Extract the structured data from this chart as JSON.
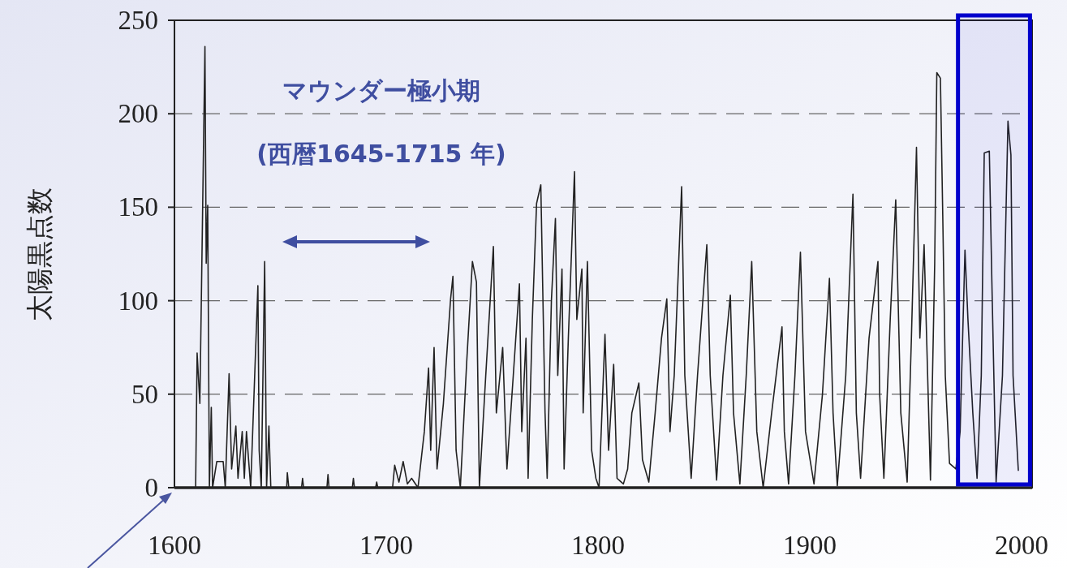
{
  "chart_data": {
    "type": "line",
    "ylabel": "太陽黒点数",
    "annotations": [
      "マウンダー極小期",
      "(西暦1645-1715 年)"
    ],
    "xlim": [
      1600,
      2005
    ],
    "xticks": [
      1600,
      1700,
      1800,
      1900,
      2000
    ],
    "ylim": [
      0,
      250
    ],
    "yticks": [
      0,
      50,
      100,
      150,
      200,
      250
    ],
    "grid": "y",
    "bands": [
      {
        "axis": "x",
        "from": 1970,
        "to": 2004,
        "color": "#0000cc"
      }
    ],
    "series": [
      {
        "color": "#222222",
        "x": [
          1610,
          1610.7,
          1612,
          1614.4,
          1615,
          1615.7,
          1616.5,
          1617.4,
          1618,
          1620,
          1623,
          1624,
          1625.8,
          1627,
          1629,
          1630,
          1632,
          1633,
          1634,
          1636,
          1639.4,
          1640,
          1641,
          1642.6,
          1643.5,
          1644.6,
          1645.5,
          1653,
          1653.3,
          1654,
          1660,
          1660.5,
          1661,
          1672,
          1672.5,
          1673,
          1684,
          1684.5,
          1685,
          1695,
          1695.5,
          1696,
          1703,
          1704,
          1706,
          1708,
          1710,
          1712,
          1715,
          1718,
          1720,
          1721,
          1722.6,
          1724,
          1727,
          1730.4,
          1731.5,
          1733,
          1735,
          1738,
          1740.7,
          1742.6,
          1744,
          1747,
          1750.6,
          1752,
          1755,
          1757,
          1760,
          1762.9,
          1764,
          1766,
          1767,
          1769,
          1771,
          1773,
          1775,
          1776,
          1778,
          1779.9,
          1781,
          1783,
          1784,
          1786,
          1788.9,
          1790,
          1792.4,
          1793,
          1795,
          1797,
          1799,
          1800.5,
          1803.3,
          1805,
          1807.4,
          1809,
          1812,
          1814,
          1816,
          1819.3,
          1821,
          1824,
          1827,
          1830,
          1832.5,
          1834,
          1836,
          1839.5,
          1841,
          1844,
          1847,
          1851.4,
          1853,
          1856,
          1859,
          1862.5,
          1864,
          1867,
          1870,
          1872.6,
          1875,
          1878,
          1882,
          1886.9,
          1888,
          1890,
          1893,
          1895.6,
          1898,
          1902,
          1906,
          1909.3,
          1911,
          1913,
          1917,
          1920.4,
          1922,
          1924,
          1928,
          1932.2,
          1933,
          1935,
          1938,
          1940.6,
          1943,
          1946,
          1948,
          1950.4,
          1952,
          1954,
          1957,
          1959,
          1960,
          1961.7,
          1962.8,
          1964,
          1966,
          1969,
          1971,
          1973.3,
          1974.7,
          1977,
          1979,
          1981,
          1982.4,
          1984.8,
          1986,
          1988,
          1991,
          1993.6,
          1995,
          1996,
          1998.5
        ],
        "values": [
          0,
          72,
          45,
          236,
          120,
          151,
          0,
          43,
          0,
          14,
          14,
          0,
          61,
          10,
          33,
          5,
          30,
          5,
          30,
          0,
          108,
          20,
          0,
          121,
          0,
          33,
          0,
          0,
          8,
          0,
          0,
          5,
          0,
          0,
          7,
          0,
          0,
          5,
          0,
          0,
          3,
          0,
          0,
          12,
          3,
          14,
          2,
          5,
          0,
          30,
          64,
          20,
          75,
          10,
          45,
          101,
          113,
          20,
          0,
          67,
          121,
          110,
          0,
          60,
          129,
          40,
          75,
          10,
          60,
          109,
          30,
          80,
          5,
          90,
          152,
          162,
          40,
          5,
          100,
          144,
          60,
          117,
          10,
          80,
          169,
          90,
          117,
          40,
          121,
          20,
          5,
          0,
          82,
          20,
          66,
          5,
          2,
          10,
          40,
          56,
          15,
          3,
          40,
          80,
          101,
          30,
          60,
          161,
          60,
          5,
          60,
          130,
          60,
          4,
          60,
          103,
          40,
          2,
          60,
          121,
          30,
          0,
          40,
          86,
          30,
          2,
          60,
          126,
          30,
          2,
          50,
          112,
          40,
          1,
          60,
          157,
          40,
          5,
          80,
          121,
          50,
          5,
          90,
          154,
          40,
          3,
          80,
          182,
          80,
          130,
          4,
          120,
          222,
          219,
          146,
          60,
          13,
          10,
          30,
          127,
          90,
          40,
          5,
          60,
          179,
          180,
          110,
          3,
          60,
          196,
          178,
          60,
          9
        ]
      }
    ]
  }
}
